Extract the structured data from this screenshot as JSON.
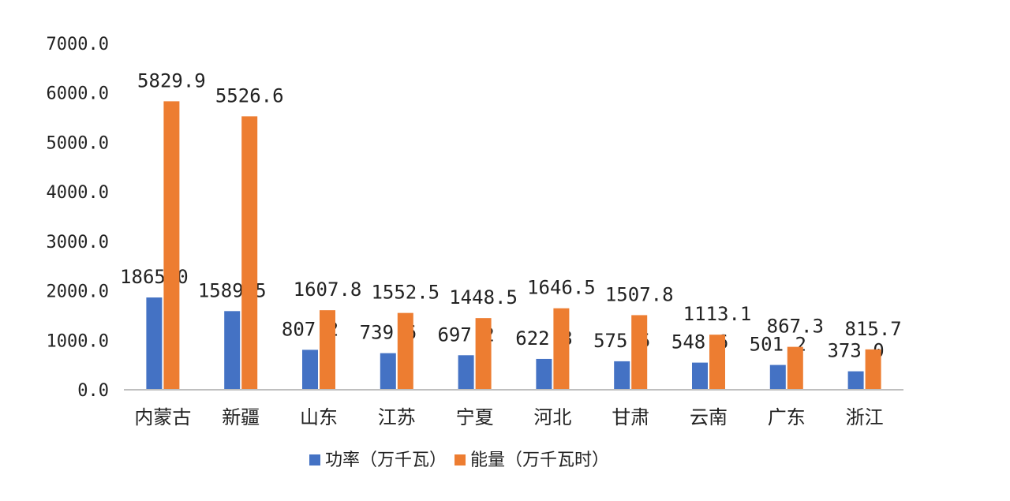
{
  "chart_data": {
    "type": "bar",
    "categories": [
      "内蒙古",
      "新疆",
      "山东",
      "江苏",
      "宁夏",
      "河北",
      "甘肃",
      "云南",
      "广东",
      "浙江"
    ],
    "series": [
      {
        "name": "功率（万千瓦）",
        "color": "#4472C4",
        "values": [
          1865.0,
          1589.5,
          807.2,
          739.6,
          697.2,
          622.8,
          575.5,
          548.6,
          501.2,
          373.0
        ],
        "labels": [
          "1865.0",
          "1589.5",
          "807.2",
          "739.6",
          "697.2",
          "622.8",
          "575.5",
          "548.6",
          "501.2",
          "373.0"
        ]
      },
      {
        "name": "能量（万千瓦时）",
        "color": "#ED7D31",
        "values": [
          5829.9,
          5526.6,
          1607.8,
          1552.5,
          1448.5,
          1646.5,
          1507.8,
          1113.1,
          867.3,
          815.7
        ],
        "labels": [
          "5829.9",
          "5526.6",
          "1607.8",
          "1552.5",
          "1448.5",
          "1646.5",
          "1507.8",
          "1113.1",
          "867.3",
          "815.7"
        ]
      }
    ],
    "ylim": [
      0,
      7000
    ],
    "yticks": [
      0,
      1000,
      2000,
      3000,
      4000,
      5000,
      6000,
      7000
    ],
    "ytick_labels": [
      "0.0",
      "1000.0",
      "2000.0",
      "3000.0",
      "4000.0",
      "5000.0",
      "6000.0",
      "7000.0"
    ],
    "grid": false,
    "legend_position": "bottom",
    "axis_color": "#bfbfbf",
    "title": "",
    "xlabel": "",
    "ylabel": ""
  }
}
